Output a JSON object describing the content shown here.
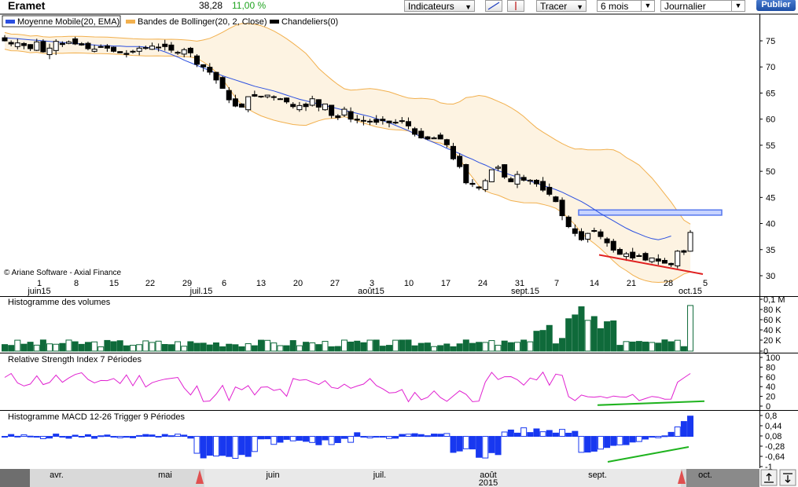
{
  "toolbar": {
    "title": "Eramet",
    "price": "38,28",
    "change": "11,00 %",
    "indicators_label": "Indicateurs",
    "draw_label": "Tracer",
    "period_value": "6 mois",
    "interval_value": "Journalier",
    "publish_label": "Publier"
  },
  "colors": {
    "ema": "#2b4fe0",
    "bollinger": "#f2b04e",
    "band_fill": "#fdf3e2",
    "volume_up": "#0f6a3a",
    "rsi": "#e020d0",
    "macd": "#1838f0",
    "trend_red": "#e02020",
    "trend_green": "#1fb31f"
  },
  "chart_data": [
    {
      "type": "candlestick",
      "legend": [
        "Moyenne Mobile(20, EMA)",
        "Bandes de Bollinger(20, 2, Close)",
        "Chandeliers(0)"
      ],
      "yticks": [
        30,
        35,
        40,
        45,
        50,
        55,
        60,
        65,
        70,
        75
      ],
      "ylim": [
        30,
        77
      ],
      "xticks": [
        "1",
        "8",
        "15",
        "22",
        "29",
        "6",
        "13",
        "20",
        "27",
        "3",
        "10",
        "17",
        "24",
        "31",
        "7",
        "14",
        "21",
        "28",
        "5"
      ],
      "month_labels": [
        "juin15",
        "juil.15",
        "août15",
        "sept.15",
        "oct.15"
      ],
      "copyright": "© Ariane Software - Axial Finance",
      "close": [
        75,
        74.4,
        74.6,
        74.1,
        73.5,
        74.8,
        72.9,
        73.6,
        74.9,
        74.3,
        74.8,
        74.4,
        74.2,
        73.5,
        73.4,
        73.9,
        73.6,
        73,
        72.7,
        72.4,
        73,
        73.6,
        73.7,
        74,
        73.8,
        73.9,
        73.2,
        72.8,
        73.3,
        72.7,
        70.5,
        70,
        69,
        67.5,
        65.9,
        63.7,
        62.5,
        62.3,
        64.3,
        64.4,
        64.3,
        64.6,
        64.3,
        63.9,
        63.3,
        62.4,
        62.6,
        62.4,
        63.9,
        62.3,
        62.9,
        60.7,
        60.3,
        61.9,
        60,
        59.8,
        59.6,
        59.6,
        59.4,
        59.7,
        59.3,
        59.4,
        59.6,
        58.7,
        57.1,
        56.4,
        56.2,
        56.4,
        56.2,
        55.1,
        52.4,
        50.9,
        47.8,
        47.5,
        46.8,
        48.2,
        50.3,
        50.8,
        48.9,
        48,
        49.4,
        48.3,
        48.3,
        47.6,
        46.4,
        45.6,
        44.2,
        41.5,
        39.4,
        38.1,
        36.9,
        38.1,
        38.6,
        37.5,
        36.3,
        34.9,
        34.1,
        34.2,
        33.4,
        33.8,
        33,
        33.4,
        32.8,
        32.4,
        32.1,
        34.7,
        34.5,
        38.3
      ],
      "ema20": [
        75.6,
        75.5,
        75.4,
        75.3,
        75.2,
        75.1,
        75,
        74.9,
        74.8,
        74.7,
        74.6,
        74.5,
        74.4,
        74.3,
        74.2,
        74.1,
        74.1,
        74,
        74,
        73.9,
        73.9,
        73.9,
        73.8,
        73.6,
        73.3,
        72.9,
        72.4,
        71.9,
        71.3,
        70.8,
        70.3,
        69.8,
        69.3,
        68.8,
        68.3,
        67.9,
        67.5,
        67.1,
        66.7,
        66.3,
        66,
        65.7,
        65.4,
        65,
        64.6,
        64.2,
        63.8,
        63.5,
        63.2,
        62.9,
        62.6,
        62.3,
        62,
        61.7,
        61.4,
        61.1,
        60.8,
        60.5,
        60.1,
        59.7,
        59.3,
        58.8,
        58.3,
        57.8,
        57.2,
        56.6,
        56,
        55.5,
        55,
        54.4,
        53.9,
        53.4,
        52.8,
        52.3,
        51.7,
        51.2,
        50.6,
        50.1,
        49.7,
        49.3,
        48.9,
        48.5,
        48.1,
        47.7,
        47.3,
        46.9,
        46.5,
        46,
        45.4,
        44.8,
        44.2,
        43.5,
        42.7,
        41.9,
        41.2,
        40.5,
        39.8,
        39.1,
        38.5,
        38,
        37.5,
        37.1,
        36.9,
        37.2,
        37.6
      ]
    },
    {
      "type": "bar",
      "title": "Histogramme des volumes",
      "yticks": [
        "0",
        "20 K",
        "40 K",
        "60 K",
        "80 K",
        "0,1 M"
      ],
      "ymax": 100000
    },
    {
      "type": "line",
      "title": "Relative Strength Index 7 Périodes",
      "yticks": [
        0,
        20,
        40,
        60,
        80,
        100
      ],
      "ylim": [
        0,
        100
      ]
    },
    {
      "type": "bar",
      "title": "Histogramme MACD 12-26   Trigger 9 Périodes",
      "yticks": [
        "0,8",
        "0,44",
        "0,08",
        "-0,28",
        "-0,64",
        "-1"
      ],
      "ylim": [
        -1,
        0.8
      ]
    },
    {
      "type": "area",
      "timeline_labels": [
        "avr.",
        "mai",
        "juin",
        "juil.",
        "août",
        "sept.",
        "oct."
      ],
      "year_label": "2015"
    }
  ]
}
